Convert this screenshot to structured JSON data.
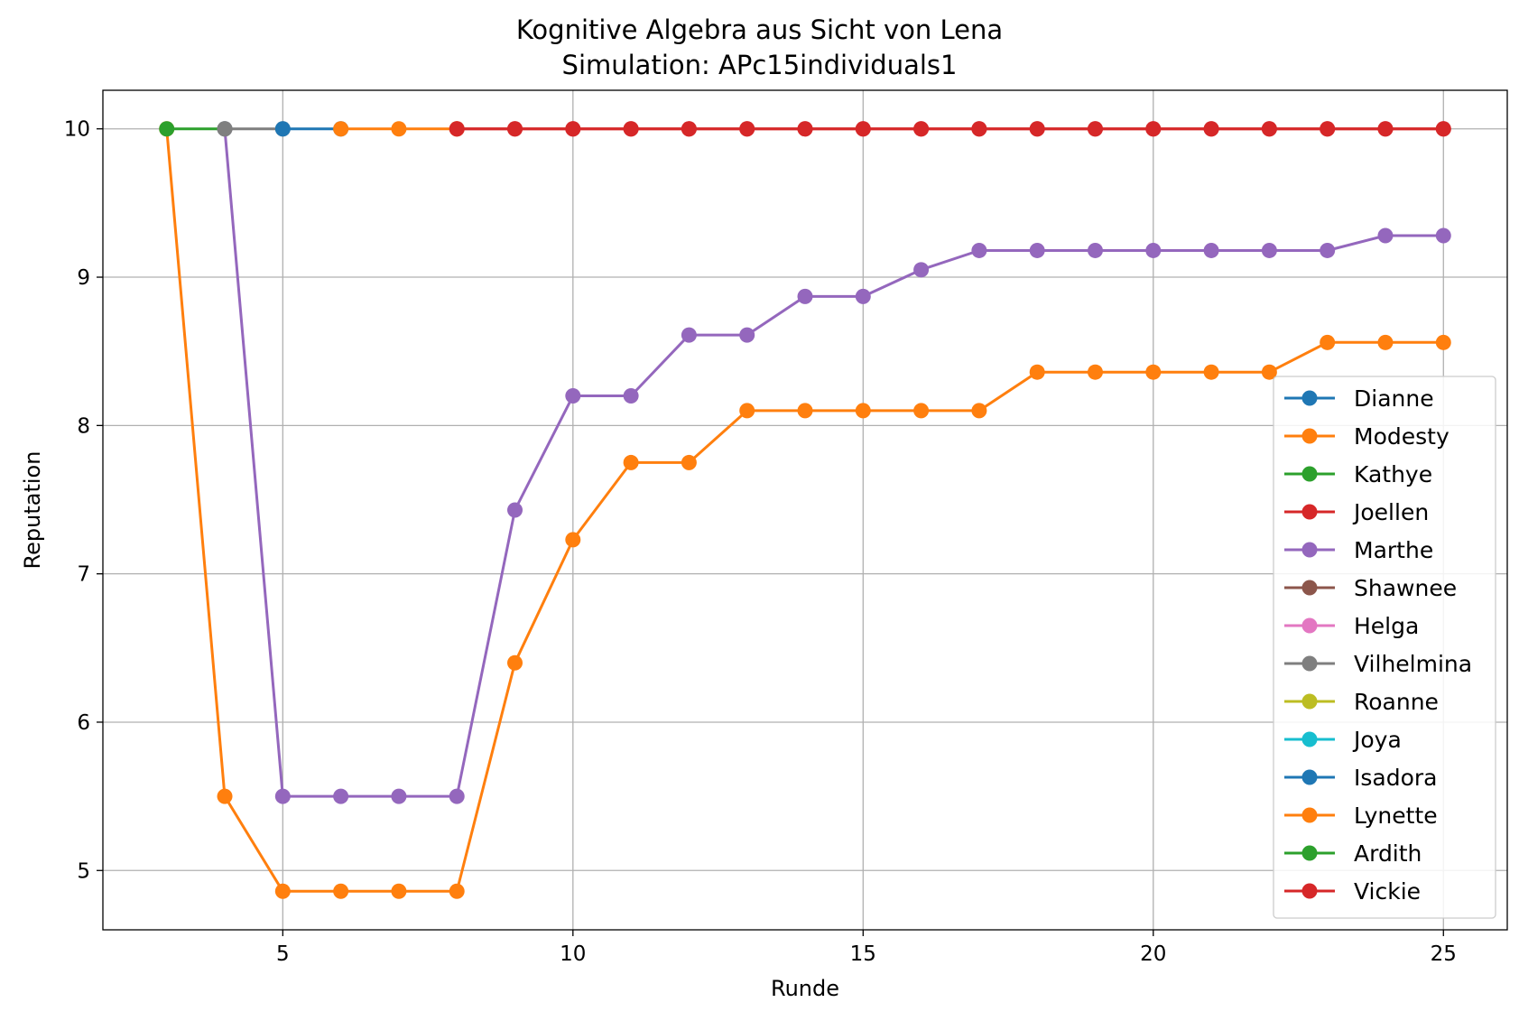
{
  "chart_data": {
    "type": "line",
    "title": "Kognitive Algebra aus Sicht von Lena",
    "subtitle": "Simulation: APc15individuals1",
    "xlabel": "Runde",
    "ylabel": "Reputation",
    "xlim": [
      1.9,
      26.1
    ],
    "ylim": [
      4.6,
      10.26
    ],
    "xticks": [
      5,
      10,
      15,
      20,
      25
    ],
    "yticks": [
      5,
      6,
      7,
      8,
      9,
      10
    ],
    "grid": true,
    "legend_position": "lower right",
    "series": [
      {
        "name": "Dianne",
        "color": "#1f77b4",
        "x": [],
        "y": []
      },
      {
        "name": "Modesty",
        "color": "#ff7f0e",
        "x": [
          3,
          4,
          5,
          6,
          7,
          8,
          9,
          10,
          11,
          12,
          13,
          14,
          15,
          16,
          17,
          18,
          19,
          20,
          21,
          22,
          23,
          24,
          25
        ],
        "y": [
          10,
          5.5,
          4.86,
          4.86,
          4.86,
          4.86,
          6.4,
          7.23,
          7.75,
          7.75,
          8.1,
          8.1,
          8.1,
          8.1,
          8.1,
          8.36,
          8.36,
          8.36,
          8.36,
          8.36,
          8.56,
          8.56,
          8.56
        ]
      },
      {
        "name": "Kathye",
        "color": "#2ca02c",
        "x": [
          3,
          4
        ],
        "y": [
          10,
          10
        ]
      },
      {
        "name": "Joellen",
        "color": "#d62728",
        "x": [
          8,
          9,
          10,
          11,
          12,
          13,
          14,
          15,
          16,
          17,
          18,
          19,
          20,
          21,
          22,
          23,
          24,
          25
        ],
        "y": [
          10,
          10,
          10,
          10,
          10,
          10,
          10,
          10,
          10,
          10,
          10,
          10,
          10,
          10,
          10,
          10,
          10,
          10
        ]
      },
      {
        "name": "Marthe",
        "color": "#9467bd",
        "x": [
          4,
          5,
          6,
          7,
          8,
          9,
          10,
          11,
          12,
          13,
          14,
          15,
          16,
          17,
          18,
          19,
          20,
          21,
          22,
          23,
          24,
          25
        ],
        "y": [
          10,
          5.5,
          5.5,
          5.5,
          5.5,
          7.43,
          8.2,
          8.2,
          8.61,
          8.61,
          8.87,
          8.87,
          9.05,
          9.18,
          9.18,
          9.18,
          9.18,
          9.18,
          9.18,
          9.18,
          9.28,
          9.28
        ]
      },
      {
        "name": "Shawnee",
        "color": "#8c564b",
        "x": [],
        "y": []
      },
      {
        "name": "Helga",
        "color": "#e377c2",
        "x": [],
        "y": []
      },
      {
        "name": "Vilhelmina",
        "color": "#7f7f7f",
        "x": [
          4,
          5
        ],
        "y": [
          10,
          10
        ]
      },
      {
        "name": "Roanne",
        "color": "#bcbd22",
        "x": [],
        "y": []
      },
      {
        "name": "Joya",
        "color": "#17becf",
        "x": [],
        "y": []
      },
      {
        "name": "Isadora",
        "color": "#1f77b4",
        "x": [
          5,
          6
        ],
        "y": [
          10,
          10
        ]
      },
      {
        "name": "Lynette",
        "color": "#ff7f0e",
        "x": [
          6,
          7,
          8
        ],
        "y": [
          10,
          10,
          10
        ]
      },
      {
        "name": "Ardith",
        "color": "#2ca02c",
        "x": [],
        "y": []
      },
      {
        "name": "Vickie",
        "color": "#d62728",
        "x": [
          8,
          9,
          10,
          11,
          12,
          13,
          14,
          15,
          16,
          17,
          18,
          19,
          20,
          21,
          22,
          23,
          24,
          25
        ],
        "y": [
          10,
          10,
          10,
          10,
          10,
          10,
          10,
          10,
          10,
          10,
          10,
          10,
          10,
          10,
          10,
          10,
          10,
          10
        ]
      }
    ]
  }
}
